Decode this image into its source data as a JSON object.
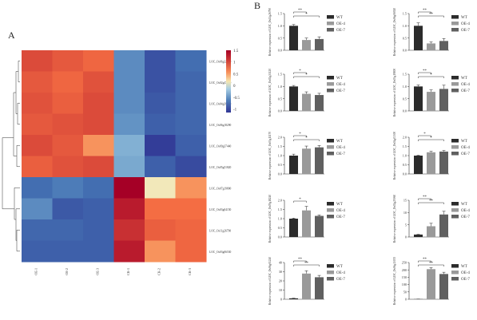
{
  "panel_labels": {
    "a": "A",
    "b": "B"
  },
  "colors": {
    "wt": "#2b2b2b",
    "oe4": "#9a9a9a",
    "oe7": "#606060"
  },
  "chart_data": [
    {
      "type": "heatmap",
      "rows": [
        "LOC_Os06g32600",
        "LOC_Os02g47150",
        "LOC_Os04g39280",
        "LOC_Os06g18290",
        "LOC_Os09g37440",
        "LOC_Os05g51820",
        "LOC_Os07g19800",
        "LOC_Os03g04150",
        "LOC_Os11g26790",
        "LOC_Os03g06530"
      ],
      "columns": [
        "OE-1",
        "OE-2",
        "OE-3",
        "CK-1",
        "CK-2",
        "CK-3"
      ],
      "values": [
        [
          0.95,
          0.85,
          0.75,
          -0.55,
          -0.95,
          -0.75
        ],
        [
          0.85,
          0.75,
          0.9,
          -0.55,
          -0.95,
          -0.8
        ],
        [
          0.9,
          0.8,
          0.95,
          -0.55,
          -0.9,
          -0.8
        ],
        [
          0.85,
          0.9,
          0.95,
          -0.5,
          -0.85,
          -0.8
        ],
        [
          0.95,
          0.85,
          0.55,
          -0.3,
          -1.1,
          -0.85
        ],
        [
          0.8,
          0.9,
          0.95,
          -0.35,
          -0.85,
          -1.0
        ],
        [
          -0.75,
          -0.65,
          -0.75,
          1.5,
          0.15,
          0.55
        ],
        [
          -0.55,
          -0.9,
          -0.85,
          1.3,
          0.7,
          0.7
        ],
        [
          -0.8,
          -0.8,
          -0.85,
          1.15,
          0.8,
          0.75
        ],
        [
          -0.85,
          -0.85,
          -0.85,
          1.3,
          0.55,
          0.75
        ]
      ],
      "colorbar_ticks": [
        "1.5",
        "1",
        "0.5",
        "0",
        "-0.5",
        "-1"
      ]
    },
    {
      "type": "bar",
      "legend": [
        "WT",
        "OE-4",
        "OE-7"
      ],
      "panels": [
        {
          "ylabel": "Relative expression of LOC_Os11g26790",
          "ymax": 1.5,
          "yticks": [
            "0.0",
            "0.5",
            "1.0",
            "1.5"
          ],
          "values": [
            1.0,
            0.42,
            0.46
          ],
          "errors": [
            0.05,
            0.08,
            0.09
          ],
          "sig": [
            "**",
            "*"
          ]
        },
        {
          "ylabel": "Relative expression of LOC_Os06g06920",
          "ymax": 1.5,
          "yticks": [
            "0.0",
            "0.5",
            "1.0",
            "1.5"
          ],
          "values": [
            1.0,
            0.28,
            0.38
          ],
          "errors": [
            0.12,
            0.06,
            0.1
          ],
          "sig": [
            "**",
            "**"
          ]
        },
        {
          "ylabel": "Relative expression of LOC_Os02g31120",
          "ymax": 1.5,
          "yticks": [
            "0.0",
            "0.5",
            "1.0",
            "1.5"
          ],
          "values": [
            1.0,
            0.7,
            0.65
          ],
          "errors": [
            0.04,
            0.08,
            0.07
          ],
          "sig": [
            "*",
            "*"
          ]
        },
        {
          "ylabel": "Relative expression of LOC_Os03g19800",
          "ymax": 1.5,
          "yticks": [
            "0.0",
            "0.5",
            "1.0",
            "1.5"
          ],
          "values": [
            1.0,
            0.78,
            0.9
          ],
          "errors": [
            0.06,
            0.08,
            0.15
          ],
          "sig": [
            "**",
            "*"
          ]
        },
        {
          "ylabel": "Relative expression of LOC_Os03g11170",
          "ymax": 2.0,
          "yticks": [
            "0.0",
            "0.5",
            "1.0",
            "1.5",
            "2.0"
          ],
          "values": [
            1.0,
            1.38,
            1.45
          ],
          "errors": [
            0.08,
            0.14,
            0.1
          ],
          "sig": [
            "*",
            "*"
          ]
        },
        {
          "ylabel": "Relative expression of LOC_Os04g03300",
          "ymax": 2.0,
          "yticks": [
            "0.0",
            "0.5",
            "1.0",
            "1.5",
            "2.0"
          ],
          "values": [
            1.0,
            1.18,
            1.22
          ],
          "errors": [
            0.02,
            0.05,
            0.06
          ],
          "sig": [
            "*",
            "*"
          ]
        },
        {
          "ylabel": "Relative expression of LOC_Os05g18240",
          "ymax": 2.0,
          "yticks": [
            "0.0",
            "0.5",
            "1.0",
            "1.5",
            "2.0"
          ],
          "values": [
            1.0,
            1.45,
            1.15
          ],
          "errors": [
            0.03,
            0.22,
            0.05
          ],
          "sig": [
            "*"
          ]
        },
        {
          "ylabel": "Relative expression of LOC_Os02g25060",
          "ymax": 15,
          "yticks": [
            "0",
            "5",
            "10",
            "15"
          ],
          "values": [
            1.0,
            4.4,
            9.2
          ],
          "errors": [
            0.1,
            1.2,
            1.3
          ],
          "sig": [
            "**",
            "**"
          ]
        },
        {
          "ylabel": "Relative expression of LOC_Os06g01240",
          "ymax": 40,
          "yticks": [
            "0",
            "10",
            "20",
            "30",
            "40"
          ],
          "values": [
            1.0,
            28.0,
            24.0
          ],
          "errors": [
            0.2,
            3.0,
            2.0
          ],
          "sig": [
            "**",
            "**"
          ]
        },
        {
          "ylabel": "Relative expression of LOC_Os06g13035",
          "ymax": 250,
          "yticks": [
            "0",
            "50",
            "100",
            "150",
            "200",
            "250"
          ],
          "values": [
            1.0,
            205,
            172
          ],
          "errors": [
            0.5,
            10,
            12
          ],
          "sig": [
            "**",
            "**"
          ]
        }
      ]
    }
  ]
}
